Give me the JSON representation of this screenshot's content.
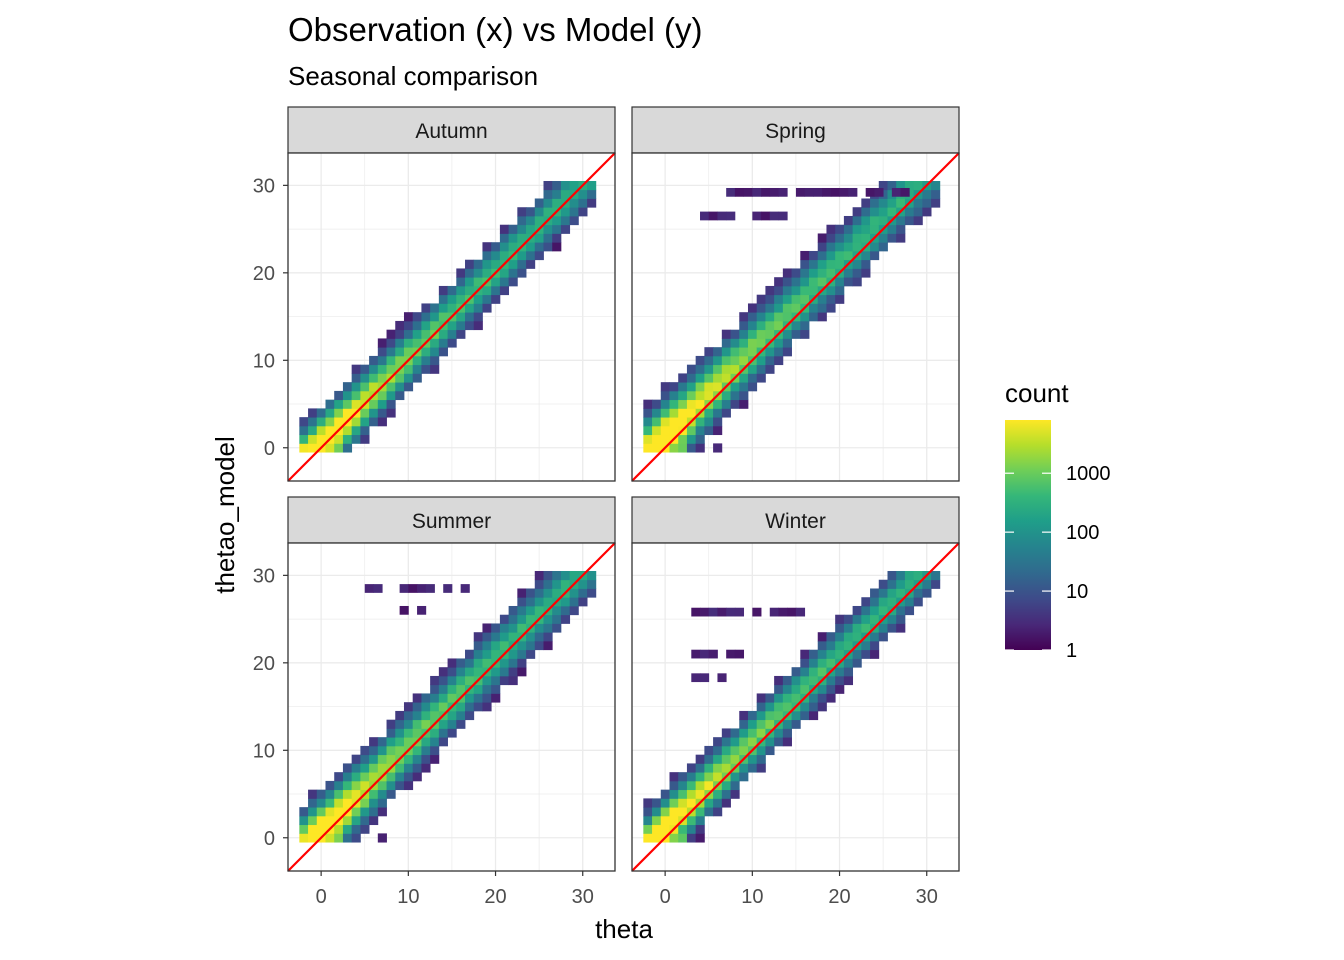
{
  "title": "Observation (x) vs Model (y)",
  "subtitle": "Seasonal comparison",
  "xlabel": "theta",
  "ylabel": "thetao_model",
  "x_ticks": [
    "0",
    "10",
    "20",
    "30"
  ],
  "y_ticks": [
    "0",
    "10",
    "20",
    "30"
  ],
  "legend": {
    "title": "count",
    "labels": [
      "1000",
      "100",
      "10",
      "1"
    ]
  },
  "colors": {
    "panel_border": "#333333",
    "grid": "#ebebeb",
    "strip_fill": "#d9d9d9",
    "identity_line": "#ff0000",
    "viridis": [
      "#440154",
      "#482878",
      "#3e4a89",
      "#31688e",
      "#26828e",
      "#1f9e89",
      "#35b779",
      "#6ece58",
      "#b5de2b",
      "#fde725"
    ]
  },
  "chart_data": {
    "type": "heatmap",
    "facets": [
      "Autumn",
      "Spring",
      "Summer",
      "Winter"
    ],
    "x_range": [
      -3.8,
      33.7
    ],
    "y_range": [
      -3.8,
      33.7
    ],
    "x_ticks": [
      0,
      10,
      20,
      30
    ],
    "y_ticks": [
      0,
      10,
      20,
      30
    ],
    "color_scale": "viridis (log10 count)",
    "count_range": [
      1,
      8000
    ],
    "reference_line": {
      "slope": 1,
      "intercept": 0
    },
    "grid": true,
    "legend_position": "right"
  }
}
